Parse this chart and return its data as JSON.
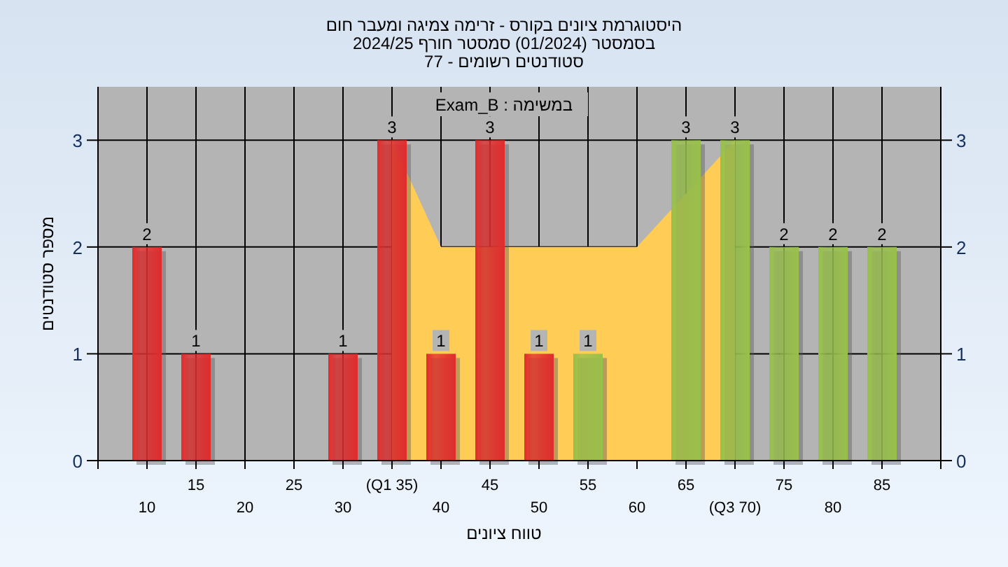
{
  "chart_data": {
    "type": "bar",
    "title": "היסטוגרמת ציונים בקורס - זרימה צמיגה ומעבר חום",
    "subtitle": "בסמסטר  (01/2024)  סמסטר חורף 2024/25",
    "annotations": [
      "סטודנטים רשומים - 77",
      "במשימה : Exam_B"
    ],
    "xlabel": "טווח ציונים",
    "ylabel": "מספר סטודנטים",
    "categories": [
      "10",
      "15",
      "20",
      "25",
      "30",
      "(Q1 35)",
      "40",
      "45",
      "50",
      "55",
      "60",
      "65",
      "(Q3 70)",
      "75",
      "80",
      "85"
    ],
    "series": [
      {
        "type": "area",
        "color": "#ffcc55",
        "values": [
          null,
          null,
          null,
          null,
          null,
          3,
          2,
          null,
          2,
          2,
          2,
          null,
          3,
          null,
          null,
          null
        ]
      },
      {
        "colors": [
          "#e02c2c",
          "#e02c2c",
          "#e02c2c",
          "#e02c2c",
          "#e02c2c",
          "#e02c2c",
          "#e02c2c",
          "#e02c2c",
          "#e02c2c",
          "#98c04a",
          "#98c04a",
          "#98c04a",
          "#98c04a",
          "#98c04a",
          "#98c04a",
          "#98c04a"
        ],
        "values": [
          2,
          1,
          0,
          0,
          1,
          3,
          1,
          3,
          1,
          1,
          0,
          3,
          3,
          2,
          2,
          2
        ],
        "value_labels": [
          "2",
          "1",
          null,
          null,
          "1",
          "3",
          "1",
          "3",
          "1",
          "1",
          null,
          "3",
          "3",
          "2",
          "2",
          "2"
        ]
      }
    ],
    "ylim": [
      0,
      3.5
    ],
    "yticks": [
      0,
      1,
      2,
      3
    ],
    "y2lim": [
      0,
      3.5
    ],
    "y2ticks": [
      0,
      1,
      2,
      3
    ],
    "grid": true
  }
}
